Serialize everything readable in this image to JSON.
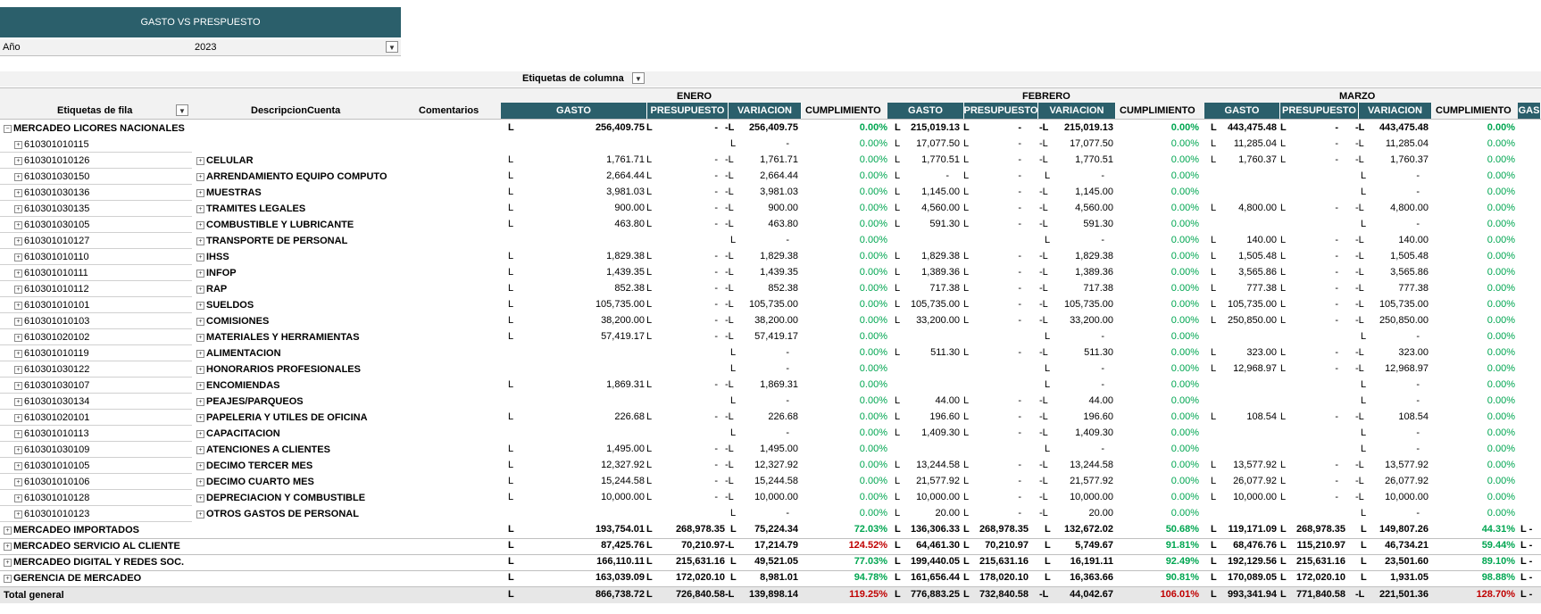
{
  "report": {
    "title": "GASTO VS PRESPUESTO",
    "year_label": "Año",
    "year_value": "2023",
    "column_labels": "Etiquetas de columna",
    "row_labels": "Etiquetas de fila",
    "desc_header": "DescripcionCuenta",
    "comments_header": "Comentarios",
    "months": [
      "ENERO",
      "FEBRERO",
      "MARZO"
    ],
    "measures": [
      "GASTO",
      "PRESUPUESTO",
      "VARIACION",
      "CUMPLIMIENTO"
    ],
    "partial_header": "GAS",
    "currency": "L",
    "filter_icon": "filter-icon",
    "colors": {
      "header_teal": "#2b5f6b",
      "green": "#00a651",
      "red": "#c00000"
    }
  },
  "rows": [
    {
      "label": "MERCADEO LICORES NACIONALES",
      "desc": "",
      "type": "group-open",
      "m": [
        [
          "256,409.75",
          "-",
          "-L 256,409.75",
          "0.00%"
        ],
        [
          "215,019.13",
          "-",
          "-L 215,019.13",
          "0.00%"
        ],
        [
          "443,475.48",
          "-",
          "-L 443,475.48",
          "0.00%"
        ]
      ],
      "partial": ""
    },
    {
      "label": "610301010115",
      "desc": "",
      "type": "detail",
      "m": [
        [
          "",
          "",
          "-",
          "0.00%"
        ],
        [
          "17,077.50",
          "-",
          "-L 17,077.50",
          "0.00%"
        ],
        [
          "11,285.04",
          "-",
          "-L 11,285.04",
          "0.00%"
        ]
      ],
      "partial": ""
    },
    {
      "label": "610301010126",
      "desc": "CELULAR",
      "type": "detail",
      "m": [
        [
          "1,761.71",
          "-",
          "-L 1,761.71",
          "0.00%"
        ],
        [
          "1,770.51",
          "-",
          "-L 1,770.51",
          "0.00%"
        ],
        [
          "1,760.37",
          "-",
          "-L 1,760.37",
          "0.00%"
        ]
      ],
      "partial": ""
    },
    {
      "label": "610301030150",
      "desc": "ARRENDAMIENTO EQUIPO COMPUTO",
      "type": "detail",
      "m": [
        [
          "2,664.44",
          "-",
          "-L 2,664.44",
          "0.00%"
        ],
        [
          "-",
          "-",
          "-",
          "0.00%"
        ],
        [
          "",
          "",
          "-",
          "0.00%"
        ]
      ],
      "partial": ""
    },
    {
      "label": "610301030136",
      "desc": "MUESTRAS",
      "type": "detail",
      "m": [
        [
          "3,981.03",
          "-",
          "-L 3,981.03",
          "0.00%"
        ],
        [
          "1,145.00",
          "-",
          "-L 1,145.00",
          "0.00%"
        ],
        [
          "",
          "",
          "-",
          "0.00%"
        ]
      ],
      "partial": ""
    },
    {
      "label": "610301030135",
      "desc": "TRAMITES LEGALES",
      "type": "detail",
      "m": [
        [
          "900.00",
          "-",
          "-L 900.00",
          "0.00%"
        ],
        [
          "4,560.00",
          "-",
          "-L 4,560.00",
          "0.00%"
        ],
        [
          "4,800.00",
          "-",
          "-L 4,800.00",
          "0.00%"
        ]
      ],
      "partial": ""
    },
    {
      "label": "610301030105",
      "desc": "COMBUSTIBLE Y LUBRICANTE",
      "type": "detail",
      "m": [
        [
          "463.80",
          "-",
          "-L 463.80",
          "0.00%"
        ],
        [
          "591.30",
          "-",
          "-L 591.30",
          "0.00%"
        ],
        [
          "",
          "",
          "-",
          "0.00%"
        ]
      ],
      "partial": ""
    },
    {
      "label": "610301010127",
      "desc": "TRANSPORTE DE PERSONAL",
      "type": "detail",
      "m": [
        [
          "",
          "",
          "-",
          "0.00%"
        ],
        [
          "",
          "",
          "-",
          "0.00%"
        ],
        [
          "140.00",
          "-",
          "-L 140.00",
          "0.00%"
        ]
      ],
      "partial": ""
    },
    {
      "label": "610301010110",
      "desc": "IHSS",
      "type": "detail",
      "m": [
        [
          "1,829.38",
          "-",
          "-L 1,829.38",
          "0.00%"
        ],
        [
          "1,829.38",
          "-",
          "-L 1,829.38",
          "0.00%"
        ],
        [
          "1,505.48",
          "-",
          "-L 1,505.48",
          "0.00%"
        ]
      ],
      "partial": ""
    },
    {
      "label": "610301010111",
      "desc": "INFOP",
      "type": "detail",
      "m": [
        [
          "1,439.35",
          "-",
          "-L 1,439.35",
          "0.00%"
        ],
        [
          "1,389.36",
          "-",
          "-L 1,389.36",
          "0.00%"
        ],
        [
          "3,565.86",
          "-",
          "-L 3,565.86",
          "0.00%"
        ]
      ],
      "partial": ""
    },
    {
      "label": "610301010112",
      "desc": "RAP",
      "type": "detail",
      "m": [
        [
          "852.38",
          "-",
          "-L 852.38",
          "0.00%"
        ],
        [
          "717.38",
          "-",
          "-L 717.38",
          "0.00%"
        ],
        [
          "777.38",
          "-",
          "-L 777.38",
          "0.00%"
        ]
      ],
      "partial": ""
    },
    {
      "label": "610301010101",
      "desc": "SUELDOS",
      "type": "detail",
      "m": [
        [
          "105,735.00",
          "-",
          "-L 105,735.00",
          "0.00%"
        ],
        [
          "105,735.00",
          "-",
          "-L 105,735.00",
          "0.00%"
        ],
        [
          "105,735.00",
          "-",
          "-L 105,735.00",
          "0.00%"
        ]
      ],
      "partial": ""
    },
    {
      "label": "610301010103",
      "desc": "COMISIONES",
      "type": "detail",
      "m": [
        [
          "38,200.00",
          "-",
          "-L 38,200.00",
          "0.00%"
        ],
        [
          "33,200.00",
          "-",
          "-L 33,200.00",
          "0.00%"
        ],
        [
          "250,850.00",
          "-",
          "-L 250,850.00",
          "0.00%"
        ]
      ],
      "partial": ""
    },
    {
      "label": "610301020102",
      "desc": "MATERIALES Y HERRAMIENTAS",
      "type": "detail",
      "m": [
        [
          "57,419.17",
          "-",
          "-L 57,419.17",
          "0.00%"
        ],
        [
          "",
          "",
          "-",
          "0.00%"
        ],
        [
          "",
          "",
          "-",
          "0.00%"
        ]
      ],
      "partial": ""
    },
    {
      "label": "610301010119",
      "desc": "ALIMENTACION",
      "type": "detail",
      "m": [
        [
          "",
          "",
          "-",
          "0.00%"
        ],
        [
          "511.30",
          "-",
          "-L 511.30",
          "0.00%"
        ],
        [
          "323.00",
          "-",
          "-L 323.00",
          "0.00%"
        ]
      ],
      "partial": ""
    },
    {
      "label": "610301030122",
      "desc": "HONORARIOS PROFESIONALES",
      "type": "detail",
      "m": [
        [
          "",
          "",
          "-",
          "0.00%"
        ],
        [
          "",
          "",
          "-",
          "0.00%"
        ],
        [
          "12,968.97",
          "-",
          "-L 12,968.97",
          "0.00%"
        ]
      ],
      "partial": ""
    },
    {
      "label": "610301030107",
      "desc": "ENCOMIENDAS",
      "type": "detail",
      "m": [
        [
          "1,869.31",
          "-",
          "-L 1,869.31",
          "0.00%"
        ],
        [
          "",
          "",
          "-",
          "0.00%"
        ],
        [
          "",
          "",
          "-",
          "0.00%"
        ]
      ],
      "partial": ""
    },
    {
      "label": "610301030134",
      "desc": "PEAJES/PARQUEOS",
      "type": "detail",
      "m": [
        [
          "",
          "",
          "-",
          "0.00%"
        ],
        [
          "44.00",
          "-",
          "-L 44.00",
          "0.00%"
        ],
        [
          "",
          "",
          "-",
          "0.00%"
        ]
      ],
      "partial": ""
    },
    {
      "label": "610301020101",
      "desc": "PAPELERIA Y UTILES DE OFICINA",
      "type": "detail",
      "m": [
        [
          "226.68",
          "-",
          "-L 226.68",
          "0.00%"
        ],
        [
          "196.60",
          "-",
          "-L 196.60",
          "0.00%"
        ],
        [
          "108.54",
          "-",
          "-L 108.54",
          "0.00%"
        ]
      ],
      "partial": ""
    },
    {
      "label": "610301010113",
      "desc": "CAPACITACION",
      "type": "detail",
      "m": [
        [
          "",
          "",
          "-",
          "0.00%"
        ],
        [
          "1,409.30",
          "-",
          "-L 1,409.30",
          "0.00%"
        ],
        [
          "",
          "",
          "-",
          "0.00%"
        ]
      ],
      "partial": ""
    },
    {
      "label": "610301030109",
      "desc": "ATENCIONES A CLIENTES",
      "type": "detail",
      "m": [
        [
          "1,495.00",
          "-",
          "-L 1,495.00",
          "0.00%"
        ],
        [
          "",
          "",
          "-",
          "0.00%"
        ],
        [
          "",
          "",
          "-",
          "0.00%"
        ]
      ],
      "partial": ""
    },
    {
      "label": "610301010105",
      "desc": "DECIMO TERCER MES",
      "type": "detail",
      "m": [
        [
          "12,327.92",
          "-",
          "-L 12,327.92",
          "0.00%"
        ],
        [
          "13,244.58",
          "-",
          "-L 13,244.58",
          "0.00%"
        ],
        [
          "13,577.92",
          "-",
          "-L 13,577.92",
          "0.00%"
        ]
      ],
      "partial": ""
    },
    {
      "label": "610301010106",
      "desc": "DECIMO CUARTO MES",
      "type": "detail",
      "m": [
        [
          "15,244.58",
          "-",
          "-L 15,244.58",
          "0.00%"
        ],
        [
          "21,577.92",
          "-",
          "-L 21,577.92",
          "0.00%"
        ],
        [
          "26,077.92",
          "-",
          "-L 26,077.92",
          "0.00%"
        ]
      ],
      "partial": ""
    },
    {
      "label": "610301010128",
      "desc": "DEPRECIACION Y COMBUSTIBLE",
      "type": "detail",
      "m": [
        [
          "10,000.00",
          "-",
          "-L 10,000.00",
          "0.00%"
        ],
        [
          "10,000.00",
          "-",
          "-L 10,000.00",
          "0.00%"
        ],
        [
          "10,000.00",
          "-",
          "-L 10,000.00",
          "0.00%"
        ]
      ],
      "partial": ""
    },
    {
      "label": "610301010123",
      "desc": "OTROS GASTOS DE PERSONAL",
      "type": "detail",
      "m": [
        [
          "",
          "",
          "-",
          "0.00%"
        ],
        [
          "20.00",
          "-",
          "-L 20.00",
          "0.00%"
        ],
        [
          "",
          "",
          "-",
          "0.00%"
        ]
      ],
      "partial": ""
    },
    {
      "label": "MERCADEO IMPORTADOS",
      "desc": "",
      "type": "group",
      "m": [
        [
          "193,754.01",
          "268,978.35",
          "L 75,224.34",
          "72.03%"
        ],
        [
          "136,306.33",
          "268,978.35",
          "L 132,672.02",
          "50.68%"
        ],
        [
          "119,171.09",
          "268,978.35",
          "L 149,807.26",
          "44.31%"
        ]
      ],
      "partial": "L  -"
    },
    {
      "label": "MERCADEO SERVICIO AL CLIENTE",
      "desc": "",
      "type": "group",
      "m": [
        [
          "87,425.76",
          "70,210.97",
          "-L 17,214.79",
          "124.52%"
        ],
        [
          "64,461.30",
          "70,210.97",
          "L 5,749.67",
          "91.81%"
        ],
        [
          "68,476.76",
          "115,210.97",
          "L 46,734.21",
          "59.44%"
        ]
      ],
      "partial": "L  -"
    },
    {
      "label": "MERCADEO DIGITAL Y REDES SOC.",
      "desc": "",
      "type": "group",
      "m": [
        [
          "166,110.11",
          "215,631.16",
          "L 49,521.05",
          "77.03%"
        ],
        [
          "199,440.05",
          "215,631.16",
          "L 16,191.11",
          "92.49%"
        ],
        [
          "192,129.56",
          "215,631.16",
          "L 23,501.60",
          "89.10%"
        ]
      ],
      "partial": "L  -"
    },
    {
      "label": "GERENCIA DE MERCADEO",
      "desc": "",
      "type": "group",
      "m": [
        [
          "163,039.09",
          "172,020.10",
          "L 8,981.01",
          "94.78%"
        ],
        [
          "161,656.44",
          "178,020.10",
          "L 16,363.66",
          "90.81%"
        ],
        [
          "170,089.05",
          "172,020.10",
          "L 1,931.05",
          "98.88%"
        ]
      ],
      "partial": "L  -"
    },
    {
      "label": "Total general",
      "desc": "",
      "type": "total",
      "m": [
        [
          "866,738.72",
          "726,840.58",
          "-L 139,898.14",
          "119.25%"
        ],
        [
          "776,883.25",
          "732,840.58",
          "-L 44,042.67",
          "106.01%"
        ],
        [
          "993,341.94",
          "771,840.58",
          "-L 221,501.36",
          "128.70%"
        ]
      ],
      "partial": "L  -"
    }
  ]
}
